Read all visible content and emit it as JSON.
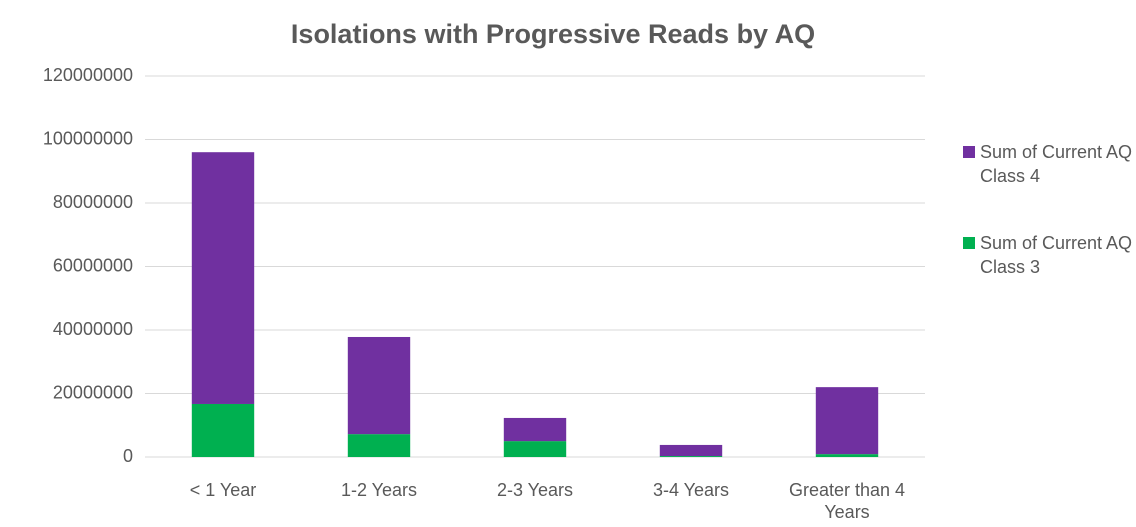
{
  "chart_data": {
    "type": "stacked_bar",
    "title": "Isolations with Progressive Reads by AQ",
    "categories": [
      "< 1 Year",
      "1-2 Years",
      "2-3 Years",
      "3-4 Years",
      "Greater than 4 Years"
    ],
    "series": [
      {
        "name": "Sum of Current AQ Class 3",
        "color": "#00b050",
        "values": [
          16700000,
          7200000,
          5000000,
          300000,
          900000
        ]
      },
      {
        "name": "Sum of Current AQ Class 4",
        "color": "#7030a0",
        "values": [
          79300000,
          30600000,
          7300000,
          3500000,
          21100000
        ]
      }
    ],
    "ylim": [
      0,
      120000000
    ],
    "yticks": [
      0,
      20000000,
      40000000,
      60000000,
      80000000,
      100000000,
      120000000
    ],
    "grid": true,
    "legend": "right"
  }
}
